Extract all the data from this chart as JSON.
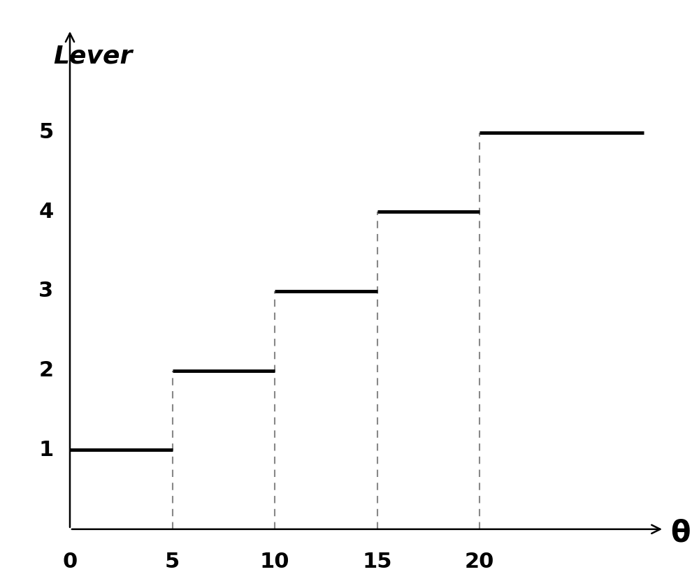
{
  "title": "",
  "xlabel": "θ",
  "ylabel": "Lever",
  "background_color": "#ffffff",
  "segments": [
    {
      "x_start": 0,
      "x_end": 5,
      "y": 1
    },
    {
      "x_start": 5,
      "x_end": 10,
      "y": 2
    },
    {
      "x_start": 10,
      "x_end": 15,
      "y": 3
    },
    {
      "x_start": 15,
      "x_end": 20,
      "y": 4
    },
    {
      "x_start": 20,
      "x_end": 28,
      "y": 5
    }
  ],
  "dashed_lines": [
    {
      "x": 5,
      "y_bot": 0,
      "y_top": 2
    },
    {
      "x": 10,
      "y_bot": 0,
      "y_top": 3
    },
    {
      "x": 15,
      "y_bot": 0,
      "y_top": 4
    },
    {
      "x": 20,
      "y_bot": 0,
      "y_top": 5
    }
  ],
  "xticks": [
    0,
    5,
    10,
    15,
    20
  ],
  "yticks": [
    1,
    2,
    3,
    4,
    5
  ],
  "xlim": [
    0,
    29
  ],
  "ylim": [
    0,
    6.3
  ],
  "line_color": "#000000",
  "line_width": 3.5,
  "dashed_color": "#888888",
  "dashed_linewidth": 1.5,
  "axis_color": "#000000",
  "axis_linewidth": 1.8,
  "tick_fontsize": 22,
  "label_fontsize": 26,
  "theta_fontsize": 30,
  "arrow_mutation_scale": 22
}
